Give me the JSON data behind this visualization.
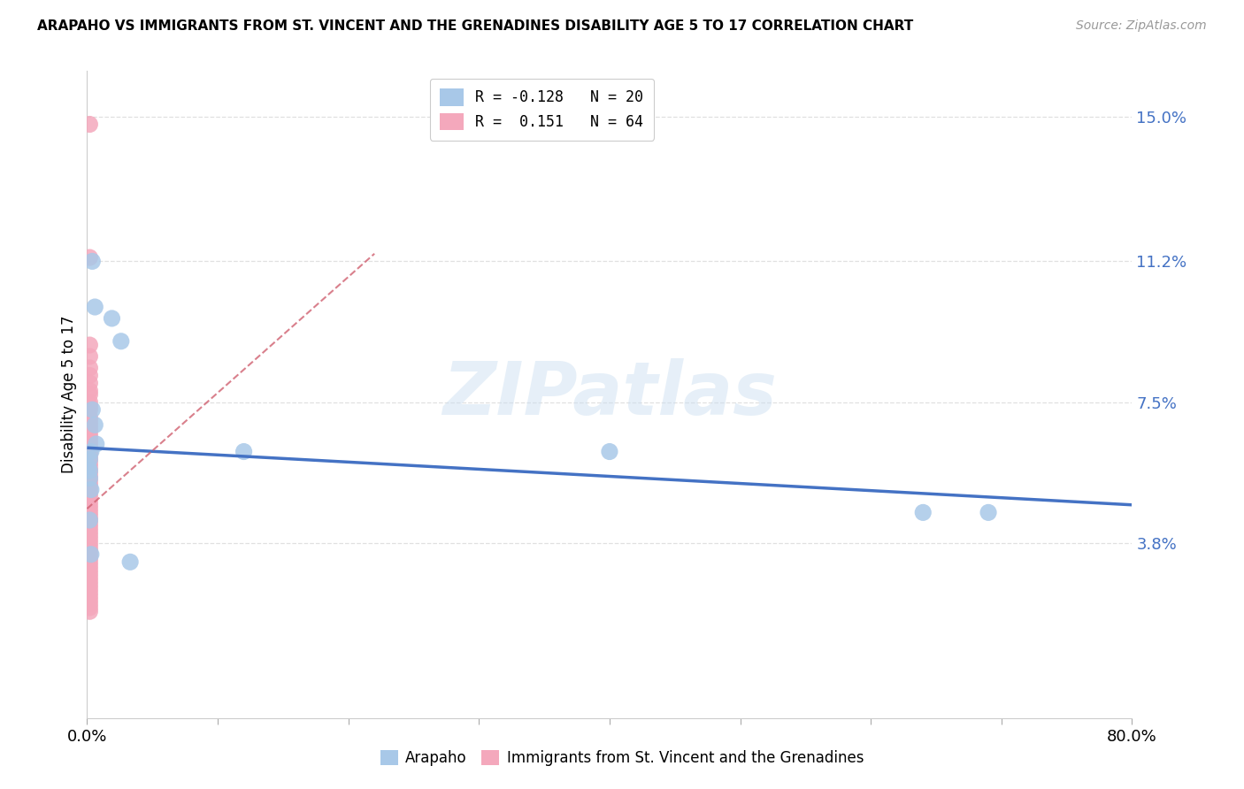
{
  "title": "ARAPAHO VS IMMIGRANTS FROM ST. VINCENT AND THE GRENADINES DISABILITY AGE 5 TO 17 CORRELATION CHART",
  "source": "Source: ZipAtlas.com",
  "ylabel": "Disability Age 5 to 17",
  "xlim": [
    0.0,
    0.8
  ],
  "ylim": [
    -0.008,
    0.162
  ],
  "yticks": [
    0.038,
    0.075,
    0.112,
    0.15
  ],
  "ytick_labels": [
    "3.8%",
    "7.5%",
    "11.2%",
    "15.0%"
  ],
  "xticks": [
    0.0,
    0.1,
    0.2,
    0.3,
    0.4,
    0.5,
    0.6,
    0.7,
    0.8
  ],
  "xtick_labels": [
    "0.0%",
    "",
    "",
    "",
    "",
    "",
    "",
    "",
    "80.0%"
  ],
  "legend_label_1": "R = -0.128   N = 20",
  "legend_label_2": "R =  0.151   N = 64",
  "watermark": "ZIPatlas",
  "arapaho_color": "#a8c8e8",
  "svg_color": "#f4a8bc",
  "trend_blue_color": "#4472c4",
  "trend_pink_color": "#d06070",
  "arapaho_x": [
    0.004,
    0.006,
    0.019,
    0.026,
    0.004,
    0.006,
    0.007,
    0.003,
    0.002,
    0.001,
    0.002,
    0.002,
    0.003,
    0.4,
    0.002,
    0.64,
    0.69,
    0.003,
    0.033,
    0.12
  ],
  "arapaho_y": [
    0.112,
    0.1,
    0.097,
    0.091,
    0.073,
    0.069,
    0.064,
    0.062,
    0.06,
    0.058,
    0.057,
    0.055,
    0.052,
    0.062,
    0.044,
    0.046,
    0.046,
    0.035,
    0.033,
    0.062
  ],
  "svg_x": [
    0.002,
    0.002,
    0.002,
    0.002,
    0.002,
    0.002,
    0.002,
    0.002,
    0.002,
    0.002,
    0.002,
    0.002,
    0.002,
    0.002,
    0.002,
    0.002,
    0.002,
    0.002,
    0.002,
    0.002,
    0.002,
    0.002,
    0.002,
    0.002,
    0.002,
    0.002,
    0.002,
    0.002,
    0.002,
    0.002,
    0.002,
    0.002,
    0.002,
    0.002,
    0.002,
    0.002,
    0.002,
    0.002,
    0.002,
    0.002,
    0.002,
    0.002,
    0.002,
    0.002,
    0.002,
    0.002,
    0.002,
    0.002,
    0.002,
    0.002,
    0.002,
    0.002,
    0.002,
    0.002,
    0.002,
    0.002,
    0.002,
    0.002,
    0.002,
    0.002,
    0.002,
    0.002,
    0.002,
    0.002
  ],
  "svg_y": [
    0.148,
    0.113,
    0.09,
    0.087,
    0.084,
    0.082,
    0.08,
    0.078,
    0.077,
    0.075,
    0.074,
    0.073,
    0.071,
    0.07,
    0.069,
    0.068,
    0.067,
    0.066,
    0.065,
    0.064,
    0.063,
    0.062,
    0.061,
    0.06,
    0.059,
    0.058,
    0.057,
    0.056,
    0.055,
    0.054,
    0.053,
    0.052,
    0.051,
    0.05,
    0.049,
    0.048,
    0.047,
    0.046,
    0.045,
    0.044,
    0.043,
    0.042,
    0.041,
    0.04,
    0.039,
    0.038,
    0.037,
    0.036,
    0.035,
    0.034,
    0.033,
    0.032,
    0.031,
    0.03,
    0.029,
    0.028,
    0.027,
    0.026,
    0.025,
    0.024,
    0.023,
    0.022,
    0.021,
    0.02
  ],
  "blue_trend_x": [
    0.0,
    0.8
  ],
  "blue_trend_y": [
    0.063,
    0.048
  ],
  "pink_trend_x": [
    0.0,
    0.22
  ],
  "pink_trend_y": [
    0.047,
    0.114
  ],
  "background_color": "#ffffff",
  "grid_color": "#e0e0e0",
  "bottom_legend_label_1": "Arapaho",
  "bottom_legend_label_2": "Immigrants from St. Vincent and the Grenadines"
}
